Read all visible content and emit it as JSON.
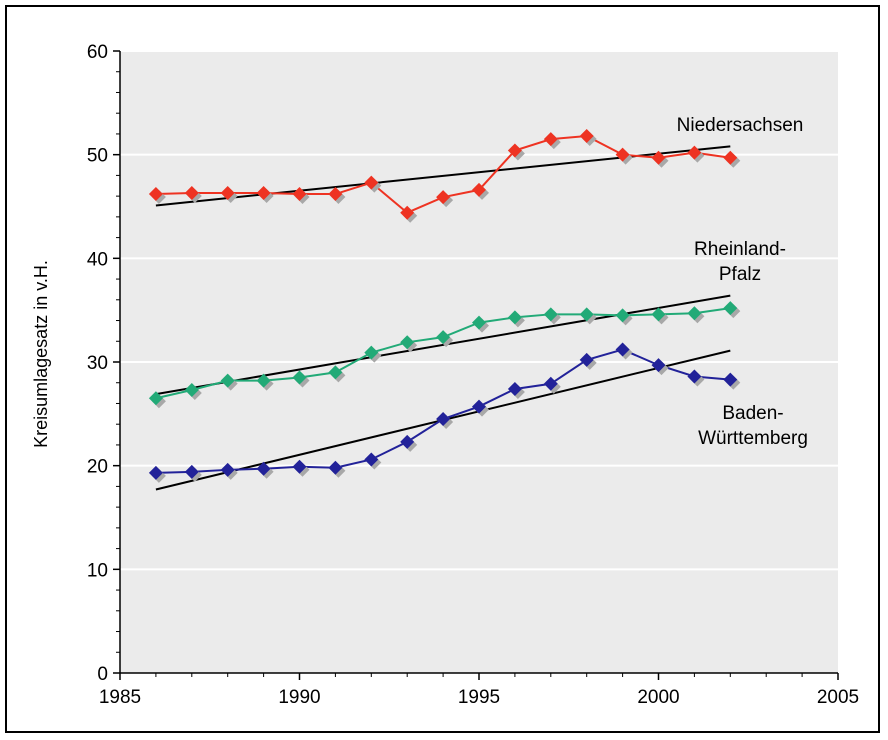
{
  "chart_data": {
    "type": "line",
    "title": "",
    "xlabel": "",
    "ylabel": "Kreisumlagesatz in v.H.",
    "xlim": [
      1985,
      2005
    ],
    "ylim": [
      0,
      60
    ],
    "x_ticks": [
      1985,
      1990,
      1995,
      2000,
      2005
    ],
    "y_ticks": [
      0,
      10,
      20,
      30,
      40,
      50,
      60
    ],
    "grid": "horizontal",
    "x": [
      1986,
      1987,
      1988,
      1989,
      1990,
      1991,
      1992,
      1993,
      1994,
      1995,
      1996,
      1997,
      1998,
      1999,
      2000,
      2001,
      2002
    ],
    "series": [
      {
        "name": "Niedersachsen",
        "color": "#ee3322",
        "values": [
          46.2,
          46.3,
          46.3,
          46.3,
          46.2,
          46.2,
          47.3,
          44.4,
          45.9,
          46.6,
          50.4,
          51.5,
          51.8,
          50.0,
          49.7,
          50.2,
          49.7
        ],
        "trend": [
          45.1,
          50.8
        ]
      },
      {
        "name": "Rheinland-Pfalz",
        "color": "#22aa77",
        "values": [
          26.5,
          27.3,
          28.2,
          28.2,
          28.5,
          29.0,
          30.9,
          31.9,
          32.4,
          33.8,
          34.3,
          34.6,
          34.6,
          34.5,
          34.6,
          34.7,
          35.2
        ],
        "trend": [
          26.9,
          36.4
        ]
      },
      {
        "name": "Baden-Württemberg",
        "color": "#222299",
        "values": [
          19.3,
          19.4,
          19.6,
          19.7,
          19.9,
          19.8,
          20.6,
          22.3,
          24.5,
          25.7,
          27.4,
          27.9,
          30.2,
          31.2,
          29.7,
          28.6,
          28.3
        ],
        "trend": [
          17.7,
          31.1
        ]
      }
    ],
    "annotations": [
      {
        "lines": [
          "Niedersachsen"
        ]
      },
      {
        "lines": [
          "Rheinland-",
          "Pfalz"
        ]
      },
      {
        "lines": [
          "Baden-",
          "Württemberg"
        ]
      }
    ]
  }
}
